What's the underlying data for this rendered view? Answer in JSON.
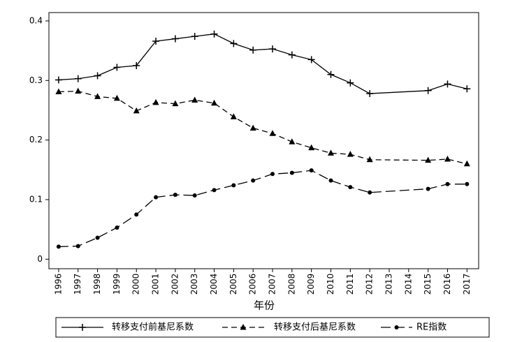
{
  "chart_data": {
    "type": "line",
    "x_label": "年份",
    "x": [
      1996,
      1997,
      1998,
      1999,
      2000,
      2001,
      2002,
      2003,
      2004,
      2005,
      2006,
      2007,
      2008,
      2009,
      2010,
      2011,
      2012,
      2015,
      2016,
      2017
    ],
    "series": [
      {
        "name": "转移支付前基尼系数",
        "color": "#000000",
        "marker": "plus",
        "dash": "solid",
        "values": [
          0.301,
          0.303,
          0.308,
          0.322,
          0.325,
          0.366,
          0.37,
          0.374,
          0.378,
          0.362,
          0.351,
          0.353,
          0.343,
          0.335,
          0.31,
          0.296,
          0.278,
          0.283,
          0.294,
          0.286
        ]
      },
      {
        "name": "转移支付后基尼系数",
        "color": "#000000",
        "marker": "triangle",
        "dash": "dash",
        "values": [
          0.281,
          0.282,
          0.273,
          0.27,
          0.249,
          0.263,
          0.261,
          0.267,
          0.262,
          0.239,
          0.22,
          0.211,
          0.197,
          0.187,
          0.178,
          0.176,
          0.167,
          0.166,
          0.168,
          0.16
        ]
      },
      {
        "name": "RE指数",
        "color": "#000000",
        "marker": "circle",
        "dash": "longdash",
        "values": [
          0.021,
          0.022,
          0.036,
          0.053,
          0.075,
          0.104,
          0.108,
          0.107,
          0.116,
          0.124,
          0.132,
          0.143,
          0.145,
          0.149,
          0.132,
          0.121,
          0.112,
          0.118,
          0.126,
          0.126
        ]
      }
    ],
    "xlim": [
      1995.5,
      2017.6
    ],
    "xticks": [
      1996,
      1997,
      1998,
      1999,
      2000,
      2001,
      2002,
      2003,
      2004,
      2005,
      2006,
      2007,
      2008,
      2009,
      2010,
      2011,
      2012,
      2013,
      2014,
      2015,
      2016,
      2017
    ],
    "ylim": [
      -0.016,
      0.414
    ],
    "yticks": [
      0,
      0.1,
      0.2,
      0.3,
      0.4
    ],
    "grid": false,
    "legend": "bottom"
  }
}
